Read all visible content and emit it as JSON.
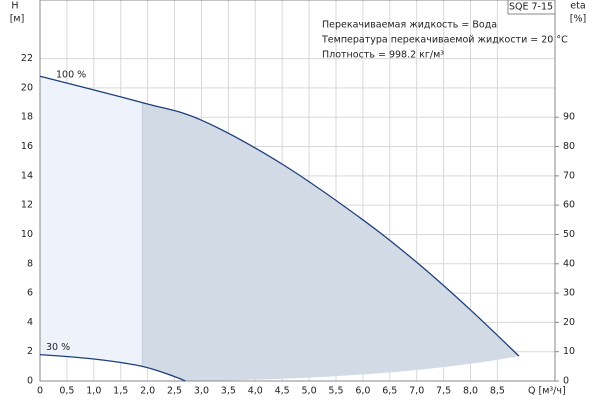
{
  "chart_data": {
    "type": "line",
    "model": "SQE 7-15",
    "info": [
      "Перекачиваемая жидкость = Вода",
      "Температура перекачиваемой жидкости = 20 °C",
      "Плотность = 998.2 кг/м³"
    ],
    "y_label": "H",
    "y_unit": "[м]",
    "y2_label": "eta",
    "y2_unit": "[%]",
    "x_label": "Q [м³/ч]",
    "xlim": [
      0,
      9.57
    ],
    "ylim": [
      0,
      26
    ],
    "y2lim": [
      0,
      130
    ],
    "xticks": [
      0,
      {
        "value": 0.5,
        "label": "0,5"
      },
      {
        "value": 1,
        "label": "1,0"
      },
      {
        "value": 1.5,
        "label": "1,5"
      },
      {
        "value": 2,
        "label": "2,0"
      },
      {
        "value": 2.5,
        "label": "2,5"
      },
      {
        "value": 3,
        "label": "3,0"
      },
      {
        "value": 3.5,
        "label": "3,5"
      },
      {
        "value": 4,
        "label": "4,0"
      },
      {
        "value": 4.5,
        "label": "4,5"
      },
      {
        "value": 5,
        "label": "5,0"
      },
      {
        "value": 5.5,
        "label": "5,5"
      },
      {
        "value": 6,
        "label": "6,0"
      },
      {
        "value": 6.5,
        "label": "6,5"
      },
      {
        "value": 7,
        "label": "7,0"
      },
      {
        "value": 7.5,
        "label": "7,5"
      },
      {
        "value": 8,
        "label": "8,0"
      },
      {
        "value": 8.5,
        "label": "8,5"
      }
    ],
    "yticks": [
      0,
      2,
      4,
      6,
      8,
      10,
      12,
      14,
      16,
      18,
      20,
      22
    ],
    "y2ticks": [
      0,
      10,
      20,
      30,
      40,
      50,
      60,
      70,
      80,
      90
    ],
    "grid": true,
    "series": [
      {
        "name": "100 %",
        "color": "#1f3f7a",
        "x": [
          0,
          1.9,
          3.0,
          4.5,
          6.0,
          7.0,
          8.0,
          8.9
        ],
        "values": [
          20.8,
          19.0,
          17.8,
          14.8,
          11.0,
          8.1,
          4.85,
          1.7
        ]
      },
      {
        "name": "30 %",
        "color": "#1f3f7a",
        "x": [
          0,
          1.0,
          1.9,
          2.5,
          2.7
        ],
        "values": [
          1.8,
          1.5,
          1.0,
          0.3,
          0
        ]
      }
    ]
  }
}
